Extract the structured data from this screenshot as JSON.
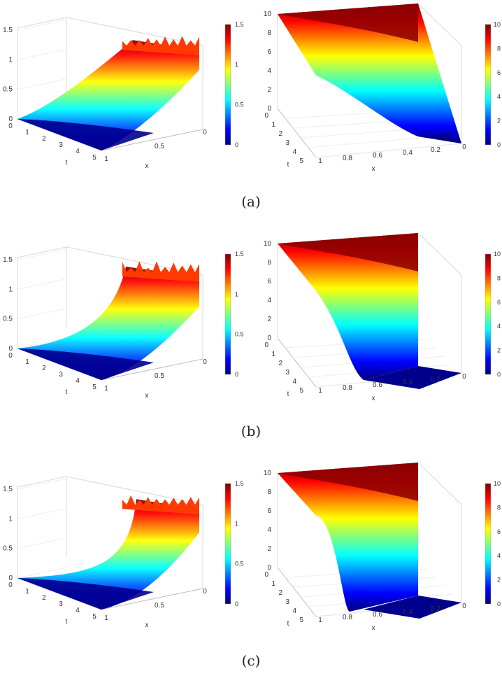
{
  "captions": {
    "a": "(a)",
    "b": "(b)",
    "c": "(c)"
  },
  "colormap": {
    "name": "jet",
    "stops": [
      "#00007f",
      "#0000ff",
      "#007fff",
      "#00ffff",
      "#7fff7f",
      "#ffff00",
      "#ff7f00",
      "#ff0000",
      "#7f0000"
    ]
  },
  "chart_data": [
    {
      "panel": "(a)",
      "type": "surface",
      "variable": "left",
      "xlabel": "x",
      "ylabel": "t",
      "x_ticks": [
        0,
        0.5,
        1
      ],
      "t_ticks": [
        0,
        1,
        2,
        3,
        4,
        5
      ],
      "z_ticks": [
        0,
        0.5,
        1,
        1.5
      ],
      "zlim": [
        0,
        1.5
      ],
      "colorbar_ticks": [
        0,
        0.5,
        1,
        1.5
      ],
      "front_peak": 1.45
    },
    {
      "panel": "(a)",
      "type": "surface",
      "variable": "right",
      "xlabel": "x",
      "ylabel": "t",
      "x_ticks": [
        0,
        0.2,
        0.4,
        0.6,
        0.8,
        1
      ],
      "t_ticks": [
        0,
        1,
        2,
        3,
        4,
        5
      ],
      "z_ticks": [
        0,
        2,
        4,
        6,
        8,
        10
      ],
      "zlim": [
        0,
        10
      ],
      "colorbar_ticks": [
        0,
        2,
        4,
        6,
        8,
        10
      ],
      "front_edge_shoulder": 3.5
    },
    {
      "panel": "(b)",
      "type": "surface",
      "variable": "left",
      "xlabel": "x",
      "ylabel": "t",
      "x_ticks": [
        0,
        0.5,
        1
      ],
      "t_ticks": [
        0,
        1,
        2,
        3,
        4,
        5
      ],
      "z_ticks": [
        0,
        0.5,
        1,
        1.5
      ],
      "zlim": [
        0,
        1.5
      ],
      "colorbar_ticks": [
        0,
        0.5,
        1,
        1.5
      ],
      "front_peak": 1.5
    },
    {
      "panel": "(b)",
      "type": "surface",
      "variable": "right",
      "xlabel": "x",
      "ylabel": "t",
      "x_ticks": [
        0,
        0.2,
        0.4,
        0.6,
        0.8,
        1
      ],
      "t_ticks": [
        0,
        1,
        2,
        3,
        4,
        5
      ],
      "z_ticks": [
        0,
        2,
        4,
        6,
        8,
        10
      ],
      "zlim": [
        0,
        10
      ],
      "colorbar_ticks": [
        0,
        2,
        4,
        6,
        8,
        10
      ],
      "front_edge_shoulder": 5.0
    },
    {
      "panel": "(c)",
      "type": "surface",
      "variable": "left",
      "xlabel": "x",
      "ylabel": "t",
      "x_ticks": [
        0,
        0.5,
        1
      ],
      "t_ticks": [
        0,
        1,
        2,
        3,
        4,
        5
      ],
      "z_ticks": [
        0,
        0.5,
        1,
        1.5
      ],
      "zlim": [
        0,
        1.5
      ],
      "colorbar_ticks": [
        0,
        0.5,
        1,
        1.5
      ],
      "front_peak": 1.45
    },
    {
      "panel": "(c)",
      "type": "surface",
      "variable": "right",
      "xlabel": "x",
      "ylabel": "t",
      "x_ticks": [
        0,
        0.2,
        0.4,
        0.6,
        0.8,
        1
      ],
      "t_ticks": [
        0,
        1,
        2,
        3,
        4,
        5
      ],
      "z_ticks": [
        0,
        2,
        4,
        6,
        8,
        10
      ],
      "zlim": [
        0,
        10
      ],
      "colorbar_ticks": [
        0,
        2,
        4,
        6,
        8,
        10
      ],
      "front_edge_shoulder": 5.5
    }
  ]
}
